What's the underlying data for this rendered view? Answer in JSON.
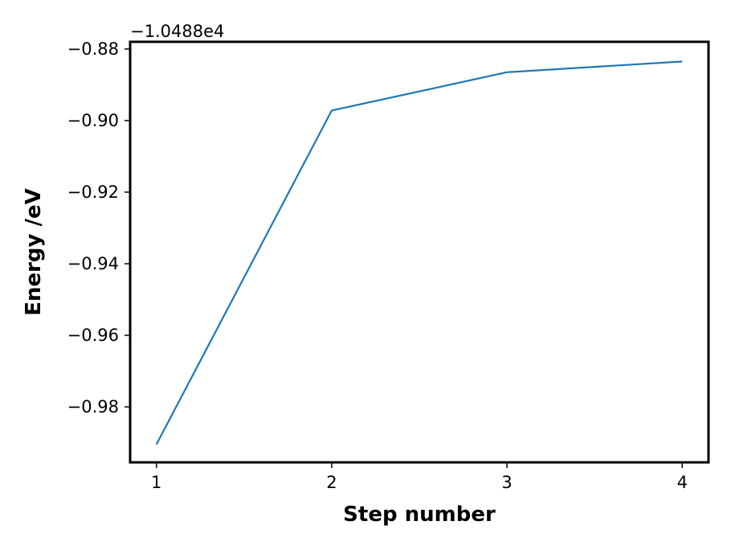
{
  "chart_data": {
    "type": "line",
    "title": "",
    "xlabel": "Step number",
    "ylabel": "Energy /eV",
    "y_offset_label": "−1.0488e4",
    "x": [
      1,
      2,
      3,
      4
    ],
    "series": [
      {
        "values": [
          -0.9905,
          -0.8972,
          -0.8865,
          -0.8835
        ],
        "color": "#1f77b4"
      }
    ],
    "xlim": [
      0.85,
      4.15
    ],
    "ylim": [
      -0.9955,
      -0.878
    ],
    "xticks": [
      1,
      2,
      3,
      4
    ],
    "xtick_labels": [
      "1",
      "2",
      "3",
      "4"
    ],
    "yticks": [
      -0.98,
      -0.96,
      -0.94,
      -0.92,
      -0.9,
      -0.88
    ],
    "ytick_labels": [
      "−0.98",
      "−0.96",
      "−0.94",
      "−0.92",
      "−0.90",
      "−0.88"
    ],
    "grid": false,
    "legend": "none"
  }
}
